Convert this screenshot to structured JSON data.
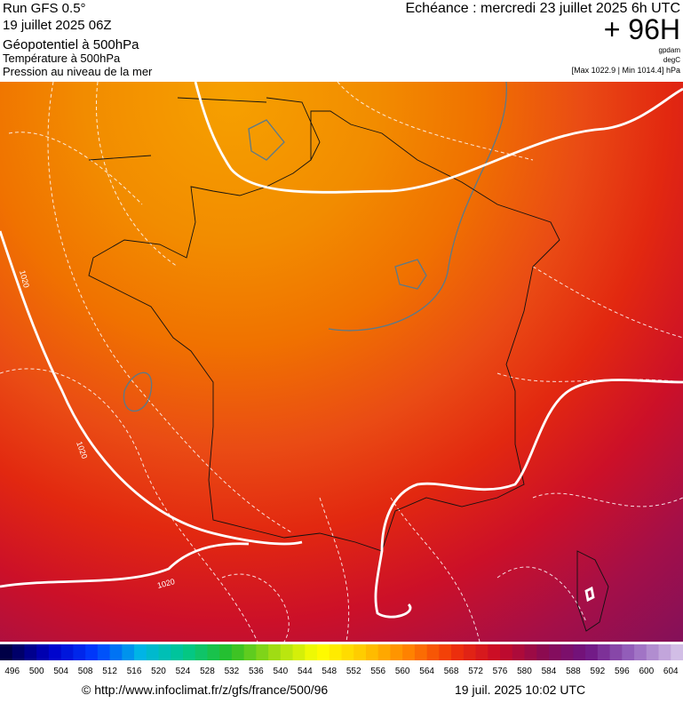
{
  "header": {
    "left": [
      "Run GFS 0.5°",
      "19 juillet 2025 06Z",
      "Géopotentiel à 500hPa",
      "Température à 500hPa",
      "Pression au niveau de la mer"
    ],
    "right": {
      "echeance": "Echéance : mercredi 23 juillet 2025 6h UTC",
      "lead": "+ 96H",
      "units": [
        "gpdam",
        "degC",
        "[Max 1022.9 | Min 1014.4] hPa"
      ]
    }
  },
  "map": {
    "contour_labels": [
      "1020",
      "1020",
      "1020"
    ]
  },
  "colorbar": {
    "labels": [
      496,
      500,
      504,
      508,
      512,
      516,
      520,
      524,
      528,
      532,
      536,
      540,
      544,
      548,
      552,
      556,
      560,
      564,
      568,
      572,
      576,
      580,
      584,
      588,
      592,
      596,
      600,
      604
    ]
  },
  "footer": {
    "credit": "© http://www.infoclimat.fr/z/gfs/france/500/96",
    "date": "19 juil. 2025 10:02 UTC"
  }
}
